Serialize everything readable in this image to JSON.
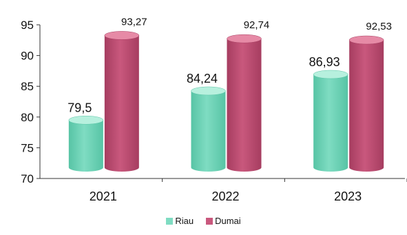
{
  "chart_data": {
    "type": "bar",
    "style": "3d-cylinder",
    "categories": [
      "2021",
      "2022",
      "2023"
    ],
    "series": [
      {
        "name": "Riau",
        "values": [
          79.5,
          84.24,
          86.93
        ],
        "labels": [
          "79,5",
          "84,24",
          "86,93"
        ],
        "color": "#7fdcc2",
        "color_top": "#b7f0de",
        "color_dark": "#57c4a5"
      },
      {
        "name": "Dumai",
        "values": [
          93.27,
          92.74,
          92.53
        ],
        "labels": [
          "93,27",
          "92,74",
          "92,53"
        ],
        "color": "#c9587d",
        "color_top": "#e68aa6",
        "color_dark": "#a63d60"
      }
    ],
    "ylim": [
      70,
      95
    ],
    "yticks": [
      "70",
      "75",
      "80",
      "85",
      "90",
      "95"
    ],
    "grid": false,
    "legend_position": "bottom"
  }
}
